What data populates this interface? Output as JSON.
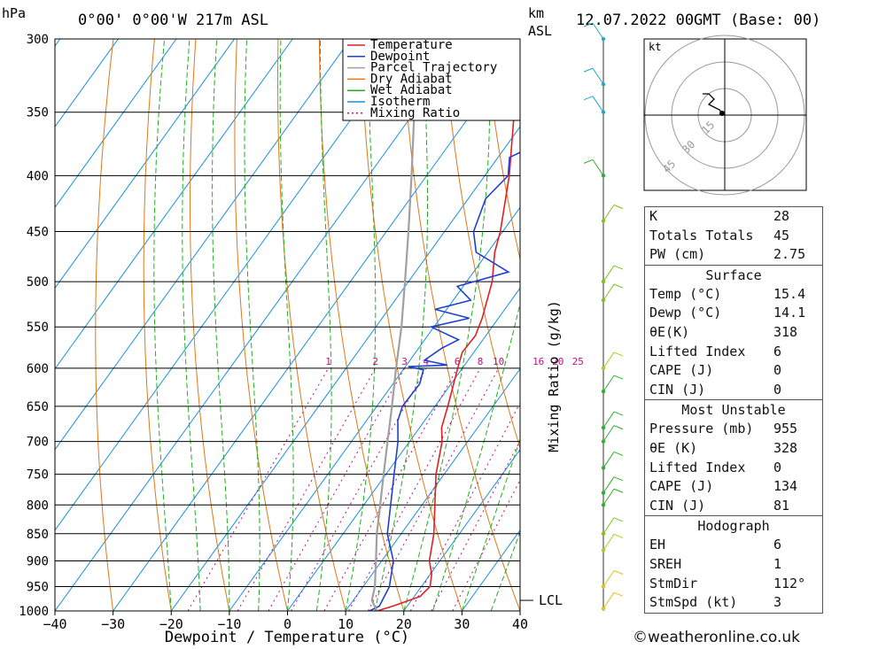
{
  "header": {
    "location": "0°00' 0°00'W 217m ASL",
    "datetime": "12.07.2022 00GMT (Base: 00)",
    "hpa_label": "hPa",
    "km_label": "km",
    "asl_label": "ASL"
  },
  "legend": {
    "items": [
      {
        "label": "Temperature",
        "color": "#e02020",
        "style": "solid"
      },
      {
        "label": "Dewpoint",
        "color": "#2040d0",
        "style": "solid"
      },
      {
        "label": "Parcel Trajectory",
        "color": "#a0a0a0",
        "style": "solid"
      },
      {
        "label": "Dry Adiabat",
        "color": "#e07818",
        "style": "solid"
      },
      {
        "label": "Wet Adiabat",
        "color": "#20b020",
        "style": "solid"
      },
      {
        "label": "Isotherm",
        "color": "#1890e0",
        "style": "solid"
      },
      {
        "label": "Mixing Ratio",
        "color": "#c01080",
        "style": "dotted"
      }
    ]
  },
  "chart_data": {
    "type": "line",
    "subtype": "skew-t log-p",
    "xlabel": "Dewpoint / Temperature (°C)",
    "ylabel_right": "Mixing Ratio (g/kg)",
    "xlim": [
      -40,
      40
    ],
    "ylim": [
      1000,
      300
    ],
    "x_ticks": [
      "−40",
      "−30",
      "−20",
      "−10",
      "0",
      "10",
      "20",
      "30",
      "40"
    ],
    "pressure_levels": [
      300,
      350,
      400,
      450,
      500,
      550,
      600,
      650,
      700,
      750,
      800,
      850,
      900,
      950,
      1000
    ],
    "mixing_ratio_labels": [
      "1",
      "2",
      "3",
      "4",
      "6",
      "8",
      "10",
      "16",
      "20",
      "25"
    ],
    "lcl_label": "LCL",
    "lcl_pressure": 978,
    "series": [
      {
        "name": "Temperature",
        "color": "#e02020",
        "points": [
          [
            1000,
            15.4
          ],
          [
            990,
            17.5
          ],
          [
            970,
            21
          ],
          [
            950,
            21.5
          ],
          [
            925,
            20.2
          ],
          [
            900,
            18.2
          ],
          [
            850,
            15.6
          ],
          [
            800,
            12.2
          ],
          [
            750,
            8.6
          ],
          [
            700,
            5.6
          ],
          [
            680,
            3.8
          ],
          [
            650,
            2.2
          ],
          [
            600,
            -0.8
          ],
          [
            580,
            -2.0
          ],
          [
            560,
            -1.8
          ],
          [
            540,
            -2.8
          ],
          [
            500,
            -5.6
          ],
          [
            470,
            -8.8
          ],
          [
            450,
            -10.4
          ],
          [
            400,
            -15.8
          ],
          [
            350,
            -22.8
          ],
          [
            330,
            -27.0
          ],
          [
            300,
            -33.8
          ]
        ]
      },
      {
        "name": "Dewpoint",
        "color": "#2040d0",
        "points": [
          [
            1000,
            14.1
          ],
          [
            990,
            15.2
          ],
          [
            950,
            14.5
          ],
          [
            900,
            12.0
          ],
          [
            850,
            7.6
          ],
          [
            800,
            4.6
          ],
          [
            750,
            1.4
          ],
          [
            700,
            -2.0
          ],
          [
            670,
            -4.6
          ],
          [
            650,
            -5.6
          ],
          [
            620,
            -5.4
          ],
          [
            602,
            -6.5
          ],
          [
            598,
            -9.5
          ],
          [
            596,
            -3.0
          ],
          [
            590,
            -7.5
          ],
          [
            575,
            -6.0
          ],
          [
            565,
            -4.2
          ],
          [
            550,
            -10.5
          ],
          [
            540,
            -5.0
          ],
          [
            530,
            -12.0
          ],
          [
            520,
            -7.0
          ],
          [
            505,
            -11.0
          ],
          [
            490,
            -4.0
          ],
          [
            470,
            -12.0
          ],
          [
            450,
            -15.0
          ],
          [
            420,
            -17.0
          ],
          [
            400,
            -16.0
          ],
          [
            385,
            -18.0
          ],
          [
            370,
            -13.5
          ],
          [
            350,
            -17.5
          ],
          [
            335,
            -12.0
          ],
          [
            320,
            -16.5
          ],
          [
            310,
            -18.0
          ],
          [
            300,
            -16.8
          ]
        ]
      },
      {
        "name": "Parcel Trajectory",
        "color": "#a0a0a0",
        "points": [
          [
            1000,
            15.4
          ],
          [
            978,
            13.2
          ],
          [
            950,
            12.0
          ],
          [
            900,
            9.0
          ],
          [
            850,
            5.8
          ],
          [
            800,
            2.8
          ],
          [
            750,
            -0.4
          ],
          [
            700,
            -3.8
          ],
          [
            650,
            -7.4
          ],
          [
            600,
            -11.4
          ],
          [
            550,
            -15.6
          ],
          [
            500,
            -20.6
          ],
          [
            450,
            -26.2
          ],
          [
            400,
            -32.6
          ],
          [
            350,
            -40.0
          ],
          [
            300,
            -49.0
          ]
        ]
      }
    ]
  },
  "hodograph": {
    "unit": "kt",
    "ring_labels": [
      "15",
      "30",
      "45"
    ]
  },
  "indices": {
    "top": [
      {
        "label": "K",
        "value": "28"
      },
      {
        "label": "Totals Totals",
        "value": "45"
      },
      {
        "label": "PW (cm)",
        "value": "2.75"
      }
    ],
    "surface": {
      "title": "Surface",
      "rows": [
        {
          "label": "Temp (°C)",
          "value": "15.4"
        },
        {
          "label": "Dewp (°C)",
          "value": "14.1"
        },
        {
          "label": "θE(K)",
          "value": "318"
        },
        {
          "label": "Lifted Index",
          "value": "6"
        },
        {
          "label": "CAPE (J)",
          "value": "0"
        },
        {
          "label": "CIN (J)",
          "value": "0"
        }
      ]
    },
    "most_unstable": {
      "title": "Most Unstable",
      "rows": [
        {
          "label": "Pressure (mb)",
          "value": "955"
        },
        {
          "label": "θE (K)",
          "value": "328"
        },
        {
          "label": "Lifted Index",
          "value": "0"
        },
        {
          "label": "CAPE (J)",
          "value": "134"
        },
        {
          "label": "CIN (J)",
          "value": "81"
        }
      ]
    },
    "hodograph_idx": {
      "title": "Hodograph",
      "rows": [
        {
          "label": "EH",
          "value": "6"
        },
        {
          "label": "SREH",
          "value": "1"
        },
        {
          "label": "StmDir",
          "value": "112°"
        },
        {
          "label": "StmSpd (kt)",
          "value": "3"
        }
      ]
    }
  },
  "credit": "©weatheronline.co.uk"
}
